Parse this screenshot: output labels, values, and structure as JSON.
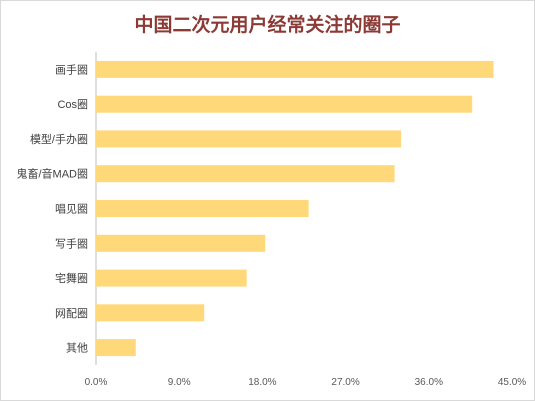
{
  "colors": {
    "bar": "#ffd87a",
    "title": "#8b3a36",
    "label": "#404040",
    "tick": "#595959",
    "axis": "#bfbfbf"
  },
  "chart_data": {
    "type": "bar",
    "orientation": "horizontal",
    "title": "中国二次元用户经常关注的圈子",
    "xlabel": "",
    "ylabel": "",
    "categories": [
      "画手圈",
      "Cos圈",
      "模型/手办圈",
      "鬼畜/音MAD圈",
      "唱见圈",
      "写手圈",
      "宅舞圈",
      "网配圈",
      "其他"
    ],
    "values": [
      43.0,
      40.7,
      33.0,
      32.3,
      23.0,
      18.3,
      16.3,
      11.7,
      4.3
    ],
    "xlim": [
      0,
      45
    ],
    "xticks": [
      "0.0%",
      "9.0%",
      "18.0%",
      "27.0%",
      "36.0%",
      "45.0%"
    ],
    "grid": false,
    "legend": "none"
  }
}
